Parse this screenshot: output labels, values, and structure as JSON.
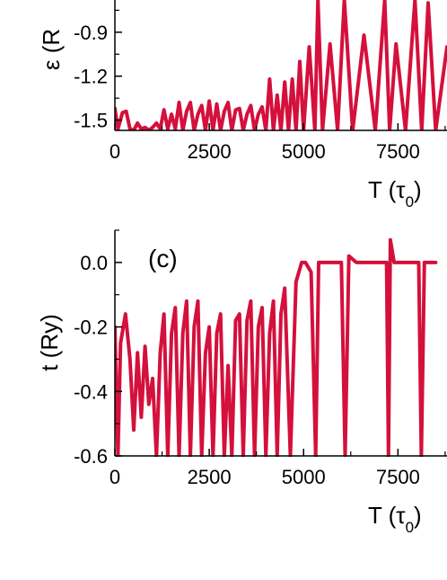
{
  "chart_data": [
    {
      "type": "line",
      "panel": "top",
      "title": "",
      "xlabel": "T (τ0)",
      "ylabel": "ε (Ry)",
      "xlim": [
        0,
        8800
      ],
      "ylim": [
        -1.57,
        -0.68
      ],
      "x_ticks": [
        0,
        2500,
        5000,
        7500
      ],
      "x_tick_labels": [
        "0",
        "2500",
        "5000",
        "7500"
      ],
      "y_ticks": [
        -1.5,
        -1.2,
        -0.9
      ],
      "y_tick_labels": [
        "-1.5",
        "-1.2",
        "-0.9"
      ],
      "ylabel_visible": "ε (R",
      "line_color": "#d4103c",
      "series": [
        {
          "x": [
            0,
            80,
            200,
            300,
            400,
            500,
            600,
            700,
            800,
            900,
            1000,
            1100,
            1200,
            1300,
            1400,
            1500,
            1600,
            1700,
            1800,
            1900,
            2000,
            2100,
            2200,
            2300,
            2400,
            2500,
            2600,
            2700,
            2800,
            2900,
            3000,
            3100,
            3200,
            3300,
            3400,
            3500,
            3600,
            3700,
            3800,
            3900,
            4000,
            4100,
            4200,
            4300,
            4400,
            4500,
            4600,
            4700,
            4800,
            4900,
            5000,
            5150,
            5300,
            5380,
            5500,
            5700,
            5900,
            6080,
            6300,
            6600,
            6900,
            7150,
            7280,
            7450,
            7700,
            7950,
            8130,
            8300,
            8500,
            8800
          ],
          "y": [
            -1.42,
            -1.56,
            -1.45,
            -1.44,
            -1.56,
            -1.57,
            -1.52,
            -1.56,
            -1.55,
            -1.57,
            -1.55,
            -1.52,
            -1.56,
            -1.43,
            -1.56,
            -1.46,
            -1.56,
            -1.38,
            -1.57,
            -1.44,
            -1.38,
            -1.57,
            -1.46,
            -1.4,
            -1.57,
            -1.37,
            -1.57,
            -1.39,
            -1.57,
            -1.44,
            -1.38,
            -1.57,
            -1.43,
            -1.42,
            -1.57,
            -1.46,
            -1.4,
            -1.57,
            -1.46,
            -1.41,
            -1.57,
            -1.22,
            -1.57,
            -1.33,
            -1.57,
            -1.24,
            -1.57,
            -1.22,
            -1.57,
            -1.1,
            -1.57,
            -1.0,
            -1.57,
            -0.68,
            -1.57,
            -0.98,
            -1.57,
            -0.68,
            -1.57,
            -0.92,
            -1.57,
            -0.68,
            -1.57,
            -0.98,
            -1.57,
            -0.68,
            -1.57,
            -0.7,
            -1.57,
            -1.0
          ]
        }
      ]
    },
    {
      "type": "line",
      "panel": "(c)",
      "title": "",
      "xlabel": "T (τ0)",
      "ylabel": "t (Ry)",
      "xlim": [
        0,
        8800
      ],
      "ylim": [
        -0.6,
        0.1
      ],
      "x_ticks": [
        0,
        2500,
        5000,
        7500
      ],
      "x_tick_labels": [
        "0",
        "2500",
        "5000",
        "7500"
      ],
      "y_ticks": [
        -0.6,
        -0.4,
        -0.2,
        0.0
      ],
      "y_tick_labels": [
        "-0.6",
        "-0.4",
        "-0.2",
        "0.0"
      ],
      "panel_label": "(c)",
      "line_color": "#d4103c",
      "series": [
        {
          "x": [
            0,
            80,
            150,
            280,
            400,
            500,
            600,
            700,
            800,
            900,
            1000,
            1100,
            1200,
            1300,
            1400,
            1500,
            1600,
            1700,
            1800,
            1900,
            2000,
            2100,
            2200,
            2300,
            2400,
            2500,
            2600,
            2700,
            2800,
            2900,
            3000,
            3100,
            3200,
            3300,
            3400,
            3500,
            3600,
            3700,
            3800,
            3900,
            4000,
            4100,
            4200,
            4300,
            4400,
            4500,
            4650,
            4800,
            4950,
            5050,
            5200,
            5320,
            5400,
            5600,
            5800,
            6000,
            6100,
            6200,
            6400,
            6700,
            7000,
            7200,
            7250,
            7300,
            7400,
            7600,
            7900,
            8050,
            8120,
            8200,
            8300,
            8500
          ],
          "y": [
            -0.2,
            -0.6,
            -0.25,
            -0.16,
            -0.3,
            -0.52,
            -0.28,
            -0.48,
            -0.26,
            -0.44,
            -0.36,
            -0.6,
            -0.28,
            -0.16,
            -0.6,
            -0.22,
            -0.14,
            -0.6,
            -0.22,
            -0.12,
            -0.6,
            -0.2,
            -0.12,
            -0.6,
            -0.28,
            -0.2,
            -0.6,
            -0.22,
            -0.16,
            -0.6,
            -0.32,
            -0.6,
            -0.18,
            -0.16,
            -0.6,
            -0.18,
            -0.12,
            -0.6,
            -0.2,
            -0.14,
            -0.6,
            -0.22,
            -0.12,
            -0.6,
            -0.16,
            -0.08,
            -0.6,
            -0.06,
            -0.0,
            -0.0,
            -0.03,
            -0.6,
            -0.0,
            -0.0,
            -0.0,
            -0.0,
            -0.6,
            0.02,
            -0.0,
            -0.0,
            -0.0,
            -0.0,
            -0.6,
            0.07,
            -0.0,
            -0.0,
            -0.0,
            -0.0,
            -0.6,
            -0.0,
            -0.0,
            -0.0
          ]
        }
      ]
    }
  ]
}
